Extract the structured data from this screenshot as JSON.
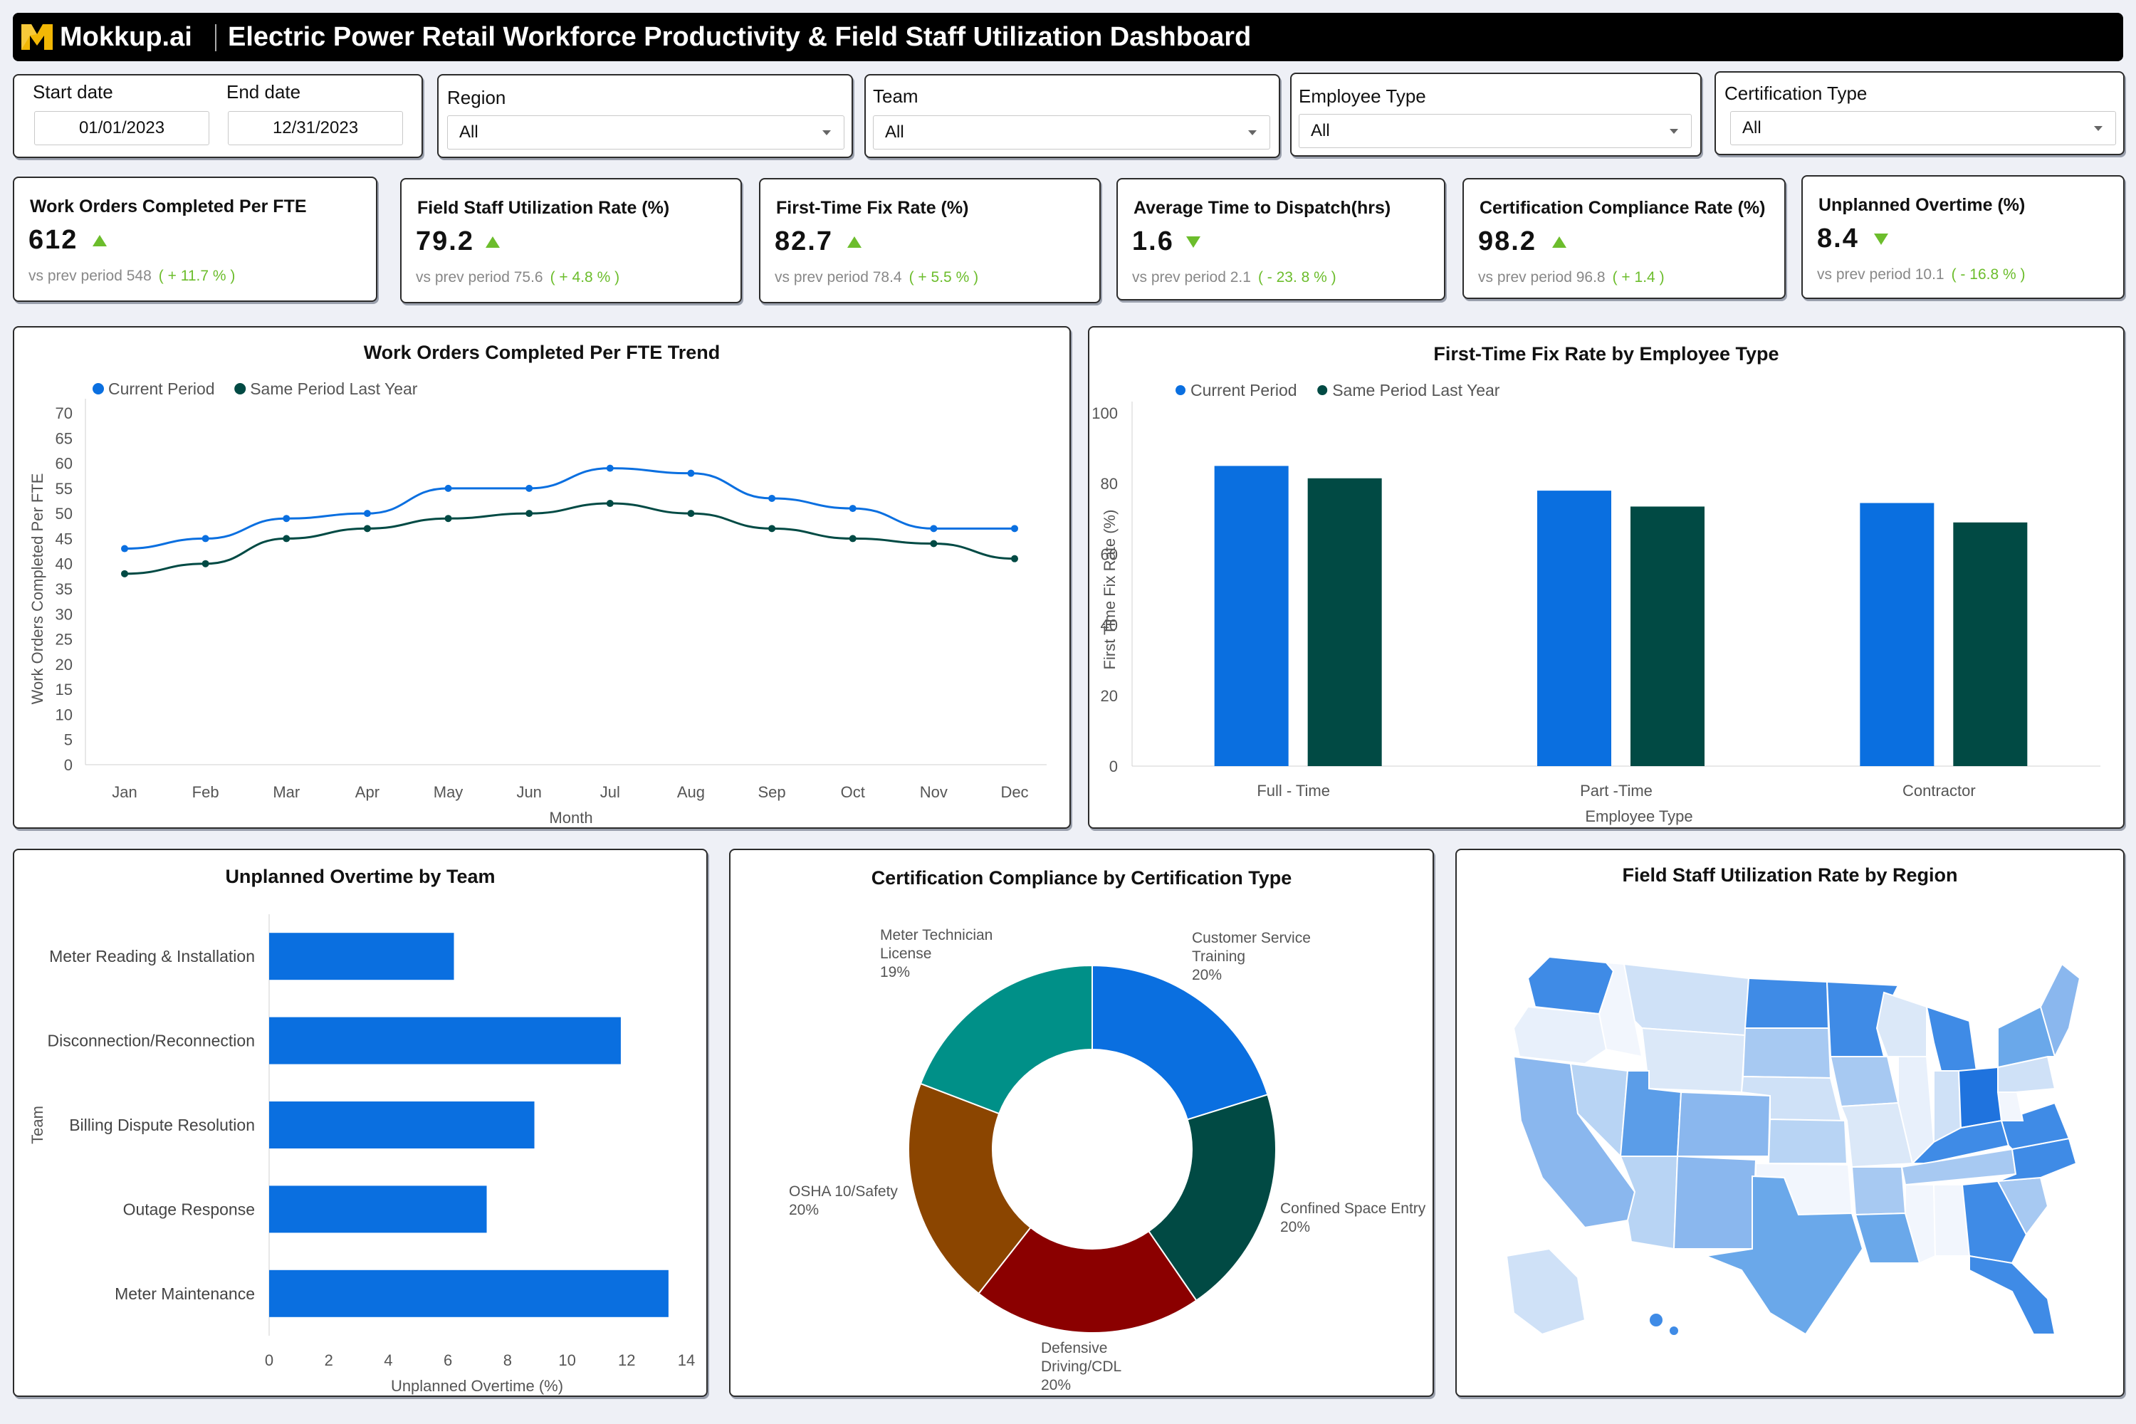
{
  "header": {
    "brand": "Mokkup.ai",
    "title": "Electric Power Retail Workforce Productivity & Field Staff Utilization Dashboard"
  },
  "filters": {
    "start_label": "Start date",
    "end_label": "End date",
    "start_value": "01/01/2023",
    "end_value": "12/31/2023",
    "region_label": "Region",
    "region_value": "All",
    "team_label": "Team",
    "team_value": "All",
    "employee_type_label": "Employee Type",
    "employee_type_value": "All",
    "certification_label": "Certification Type",
    "certification_value": "All"
  },
  "kpis": [
    {
      "title": "Work Orders Completed Per FTE",
      "value": "612",
      "direction": "up",
      "prev": "vs prev period 548",
      "change": "( + 11.7 % )"
    },
    {
      "title": "Field Staff Utilization Rate (%)",
      "value": "79.2",
      "direction": "up",
      "prev": "vs prev period 75.6",
      "change": "( + 4.8 % )"
    },
    {
      "title": "First-Time Fix Rate (%)",
      "value": "82.7",
      "direction": "up",
      "prev": "vs prev period 78.4",
      "change": "( + 5.5 % )"
    },
    {
      "title": "Average Time to Dispatch(hrs)",
      "value": "1.6",
      "direction": "down",
      "prev": "vs prev period 2.1",
      "change": "( - 23. 8 % )"
    },
    {
      "title": "Certification Compliance Rate (%)",
      "value": "98.2",
      "direction": "up",
      "prev": "vs prev period 96.8",
      "change": "( + 1.4 )"
    },
    {
      "title": "Unplanned Overtime (%)",
      "value": "8.4",
      "direction": "down",
      "prev": "vs prev period 10.1",
      "change": "( - 16.8 % )"
    }
  ],
  "colors": {
    "current": "#0a6fe0",
    "previous": "#014a44",
    "positive": "#6cbd2c"
  },
  "chart_data": [
    {
      "type": "line",
      "title": "Work Orders Completed Per FTE Trend",
      "xlabel": "Month",
      "ylabel": "Work Orders Completed Per FTE",
      "ylim": [
        0,
        70
      ],
      "yticks": [
        0,
        5,
        10,
        15,
        20,
        25,
        30,
        35,
        40,
        45,
        50,
        55,
        60,
        65,
        70
      ],
      "grid": false,
      "legend": "top-left",
      "categories": [
        "Jan",
        "Feb",
        "Mar",
        "Apr",
        "May",
        "Jun",
        "Jul",
        "Aug",
        "Sep",
        "Oct",
        "Nov",
        "Dec"
      ],
      "series": [
        {
          "name": "Current Period",
          "values": [
            43,
            45,
            49,
            50,
            55,
            55,
            59,
            58,
            53,
            51,
            47,
            47
          ]
        },
        {
          "name": "Same Period Last Year",
          "values": [
            38,
            40,
            45,
            47,
            49,
            50,
            52,
            50,
            47,
            45,
            44,
            41
          ]
        }
      ]
    },
    {
      "type": "bar",
      "title": "First-Time Fix Rate by Employee Type",
      "xlabel": "Employee Type",
      "ylabel": "First Time Fix Rate (%)",
      "ylim": [
        0,
        100
      ],
      "yticks": [
        0,
        20,
        40,
        60,
        80,
        100
      ],
      "grid": false,
      "legend": "top-left",
      "categories": [
        "Full - Time",
        "Part -Time",
        "Contractor"
      ],
      "series": [
        {
          "name": "Current Period",
          "values": [
            85,
            78,
            74.5
          ]
        },
        {
          "name": "Same Period Last Year",
          "values": [
            81.5,
            73.5,
            69
          ]
        }
      ]
    },
    {
      "type": "bar",
      "orientation": "horizontal",
      "title": "Unplanned Overtime by Team",
      "xlabel": "Unplanned Overtime (%)",
      "ylabel": "Team",
      "xlim": [
        0,
        14
      ],
      "xticks": [
        0,
        2,
        4,
        6,
        8,
        10,
        12,
        14
      ],
      "categories": [
        "Meter Reading & Installation",
        "Disconnection/Reconnection",
        "Billing Dispute Resolution",
        "Outage Response",
        "Meter Maintenance"
      ],
      "values": [
        6.2,
        11.8,
        8.9,
        7.3,
        13.4
      ]
    },
    {
      "type": "pie",
      "donut": true,
      "title": "Certification Compliance by Certification Type",
      "slices": [
        {
          "label": [
            "Customer Service",
            "Training"
          ],
          "pct": "20%",
          "value": 20,
          "color": "#0a6fe0"
        },
        {
          "label": [
            "Confined Space Entry"
          ],
          "pct": "20%",
          "value": 20,
          "color": "#014a44"
        },
        {
          "label": [
            "Defensive",
            "Driving/CDL"
          ],
          "pct": "20%",
          "value": 20,
          "color": "#8b0000"
        },
        {
          "label": [
            "OSHA 10/Safety"
          ],
          "pct": "20%",
          "value": 20,
          "color": "#8b4500"
        },
        {
          "label": [
            "Meter Technician",
            "License"
          ],
          "pct": "19%",
          "value": 19,
          "color": "#009088"
        }
      ]
    },
    {
      "type": "map",
      "title": "Field Staff Utilization Rate by Region"
    }
  ]
}
